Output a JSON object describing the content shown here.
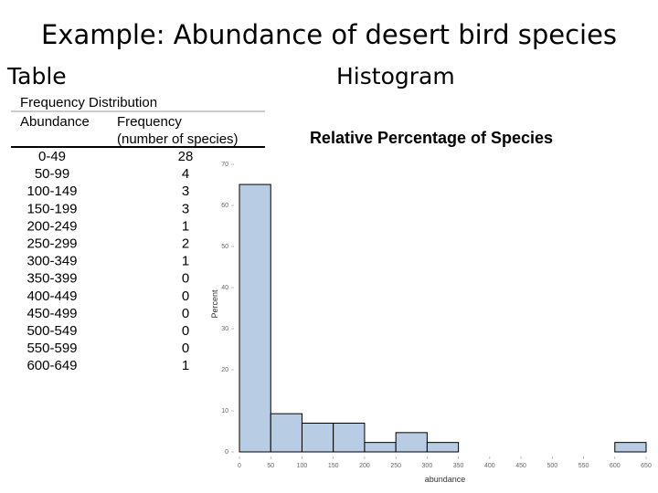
{
  "slide": {
    "title": "Example: Abundance of desert bird species",
    "left_heading": "Table",
    "right_heading": "Histogram"
  },
  "table": {
    "title": "Frequency Distribution",
    "header": [
      "Abundance",
      "Frequency"
    ],
    "header_note": "(number of species)",
    "rows": [
      [
        "0-49",
        "28"
      ],
      [
        "50-99",
        "4"
      ],
      [
        "100-149",
        "3"
      ],
      [
        "150-199",
        "3"
      ],
      [
        "200-249",
        "1"
      ],
      [
        "250-299",
        "2"
      ],
      [
        "300-349",
        "1"
      ],
      [
        "350-399",
        "0"
      ],
      [
        "400-449",
        "0"
      ],
      [
        "450-499",
        "0"
      ],
      [
        "500-549",
        "0"
      ],
      [
        "550-599",
        "0"
      ],
      [
        "600-649",
        "1"
      ]
    ]
  },
  "chart_data": {
    "type": "histogram",
    "title": "Relative Percentage of Species",
    "x_label": "abundance",
    "y_label": "Percent",
    "bins": [
      0,
      50,
      100,
      150,
      200,
      250,
      300,
      350,
      400,
      450,
      500,
      550,
      600,
      650
    ],
    "values": [
      65.1,
      9.3,
      7.0,
      7.0,
      2.3,
      4.7,
      2.3,
      0,
      0,
      0,
      0,
      0,
      2.3
    ],
    "color": "#b8cce4",
    "edge_color": "#000000",
    "xlim": [
      0,
      650
    ],
    "xticks": [
      0,
      50,
      100,
      150,
      200,
      250,
      300,
      350,
      400,
      450,
      500,
      550,
      600,
      650
    ],
    "ylim": [
      0,
      70
    ],
    "yticks": [
      0,
      10,
      20,
      30,
      40,
      50,
      60,
      70
    ],
    "grid": false
  }
}
